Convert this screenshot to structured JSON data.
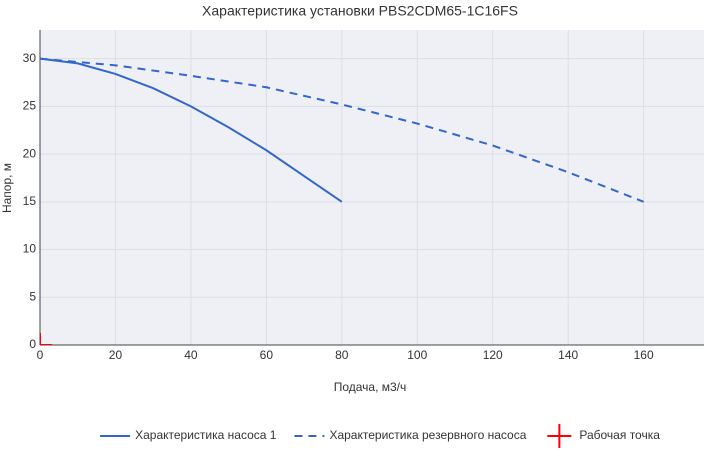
{
  "chart_data": {
    "type": "line",
    "title": "Характеристика установки PBS2CDM65-1C16FS",
    "x_label": "Подача, м3/ч",
    "y_label": "Напор, м",
    "xlim": [
      0,
      176
    ],
    "ylim": [
      0,
      33
    ],
    "xticks": [
      0,
      20,
      40,
      60,
      80,
      100,
      120,
      140,
      160
    ],
    "yticks": [
      0,
      5,
      10,
      15,
      20,
      25,
      30
    ],
    "grid": true,
    "legend": "bottom",
    "series": [
      {
        "name": "Характеристика насоса 1",
        "color": "#3366cc",
        "dash": "solid",
        "x": [
          0,
          10,
          20,
          30,
          40,
          50,
          60,
          70,
          80
        ],
        "values": [
          30,
          29.5,
          28.4,
          26.9,
          25,
          22.8,
          20.4,
          17.7,
          15
        ]
      },
      {
        "name": "Характеристика резервного насоса",
        "color": "#3366cc",
        "dash": "dashed",
        "x": [
          0,
          20,
          40,
          60,
          80,
          100,
          120,
          140,
          160
        ],
        "values": [
          30,
          29.3,
          28.2,
          27,
          25.2,
          23.2,
          20.9,
          18.1,
          15
        ]
      },
      {
        "name": "Рабочая точка",
        "color": "#ff0000",
        "marker": "cross",
        "x": [
          0
        ],
        "values": [
          0
        ]
      }
    ]
  }
}
